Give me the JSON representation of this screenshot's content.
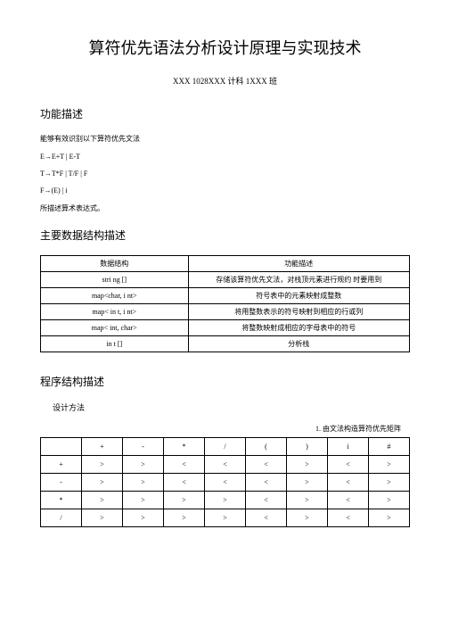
{
  "title": "算符优先语法分析设计原理与实现技术",
  "subtitle": "XXX 1028XXX 计科  1XXX 班",
  "sections": {
    "func_desc": {
      "heading": "功能描述",
      "intro": "能够有效识别以下算符优先文法",
      "grammar": [
        "E→E+T | E-T",
        "T→T*F | T/F | F",
        "F→(E) | i"
      ],
      "outro": "所描述算术表达式。"
    },
    "data_struct": {
      "heading": "主要数据结构描述",
      "table": {
        "headers": [
          "数据结构",
          "功能描述"
        ],
        "rows": [
          [
            "stri ng []",
            "存储该算符优先文法，对栈顶元素进行规约  时要用到"
          ],
          [
            "map<char, i nt>",
            "符号表中的元素映射成整数"
          ],
          [
            "map< in t, i nt>",
            "将用整数表示的符号映射到相应的行或列"
          ],
          [
            "map< int, char>",
            "将整数映射成相应的字母表中的符号"
          ],
          [
            "in t []",
            "分析栈"
          ]
        ]
      }
    },
    "prog_struct": {
      "heading": "程序结构描述",
      "subheading": "设计方法",
      "matrix_label": "1.       由文法构造算符优先矩阵",
      "matrix": {
        "cols": [
          "",
          "+",
          "-",
          "*",
          "/",
          "(",
          ")",
          "i",
          "#"
        ],
        "rows": [
          [
            "+",
            ">",
            ">",
            "<",
            "<",
            "<",
            ">",
            "<",
            ">"
          ],
          [
            "-",
            ">",
            ">",
            "<",
            "<",
            "<",
            ">",
            "<",
            ">"
          ],
          [
            "*",
            ">",
            ">",
            ">",
            ">",
            "<",
            ">",
            "<",
            ">"
          ],
          [
            "/",
            ">",
            ">",
            ">",
            ">",
            "<",
            ">",
            "<",
            ">"
          ]
        ]
      }
    }
  }
}
